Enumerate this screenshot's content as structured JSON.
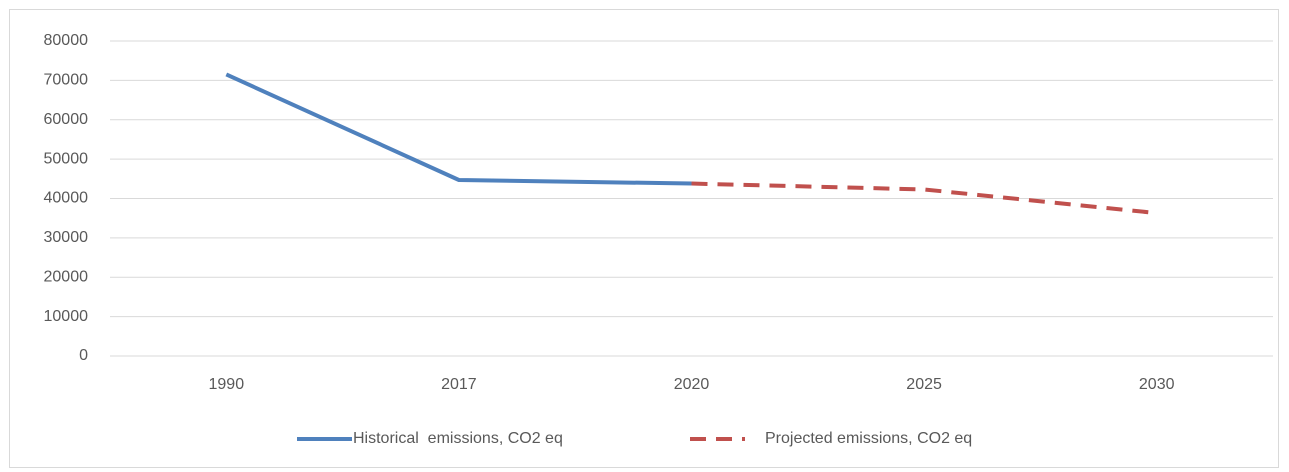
{
  "chart_data": {
    "type": "line",
    "categories": [
      "1990",
      "2017",
      "2020",
      "2025",
      "2030"
    ],
    "series": [
      {
        "name": "Historical  emissions, CO2 eq",
        "color": "#4f81bd",
        "dashed": false,
        "values": [
          71500,
          44700,
          43800,
          null,
          null
        ]
      },
      {
        "name": "Projected emissions, CO2 eq",
        "color": "#c0504d",
        "dashed": true,
        "values": [
          null,
          null,
          43800,
          42300,
          36300
        ]
      }
    ],
    "ylim": [
      0,
      80000
    ],
    "yticks": [
      0,
      10000,
      20000,
      30000,
      40000,
      50000,
      60000,
      70000,
      80000
    ],
    "grid": true,
    "legend": "bottom"
  }
}
